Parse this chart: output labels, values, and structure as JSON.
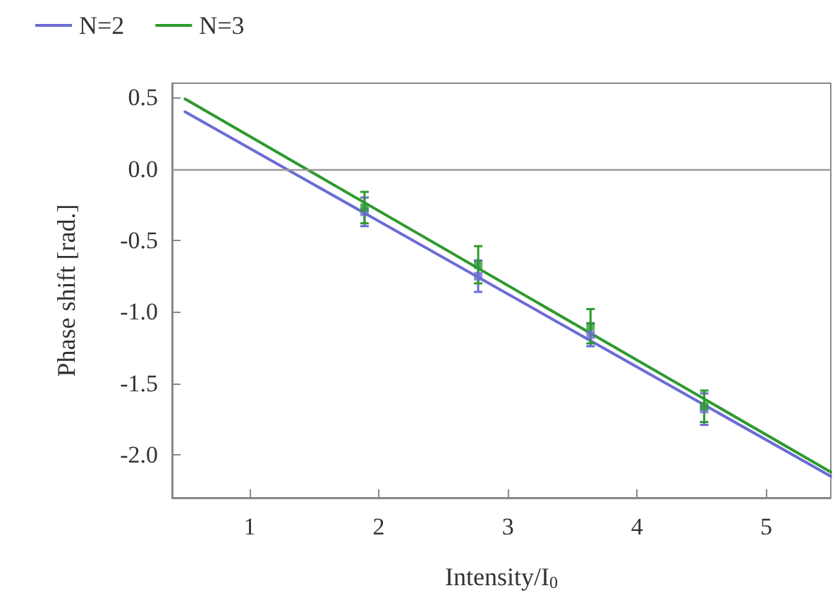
{
  "chart_data": {
    "type": "line",
    "xlabel": "Intensity/I$_{0}$",
    "ylabel": "Phase shift [rad.]",
    "xlim": [
      0.4,
      5.5
    ],
    "xticks": [
      1,
      2,
      3,
      4,
      5
    ],
    "ylim": [
      -2.3,
      0.6
    ],
    "yticks": [
      0.5,
      {
        "value": 0,
        "label": "0.0"
      },
      -0.5,
      {
        "value": -1,
        "label": "-1.0"
      },
      -1.5,
      {
        "value": -2,
        "label": "-2.0"
      }
    ],
    "legend": "top left",
    "grid": false,
    "ref_lines": [
      {
        "axis": "y",
        "value": 0,
        "color": "#999999"
      }
    ],
    "series": [
      {
        "name": "N=2",
        "color": "#6b6bd6",
        "x": [
          0.5,
          5.5
        ],
        "values": [
          0.4,
          -2.15
        ],
        "marker": "none"
      },
      {
        "name": "N=3",
        "color": "#2e9a2e",
        "x": [
          0.5,
          5.5
        ],
        "values": [
          0.49,
          -2.12
        ],
        "marker": "none"
      },
      {
        "type": "scatter",
        "color": "#6b6bd6",
        "x": [
          1.89,
          2.77,
          3.64,
          4.52
        ],
        "values": [
          -0.3,
          -0.75,
          -1.16,
          -1.68
        ],
        "errors": [
          0.1,
          0.11,
          0.08,
          0.11
        ],
        "marker": "square"
      },
      {
        "type": "scatter",
        "color": "#2e9a2e",
        "x": [
          1.89,
          2.77,
          3.64,
          4.52
        ],
        "values": [
          -0.27,
          -0.67,
          -1.1,
          -1.66
        ],
        "errors": [
          0.11,
          0.13,
          0.12,
          0.11
        ],
        "marker": "square"
      }
    ]
  }
}
